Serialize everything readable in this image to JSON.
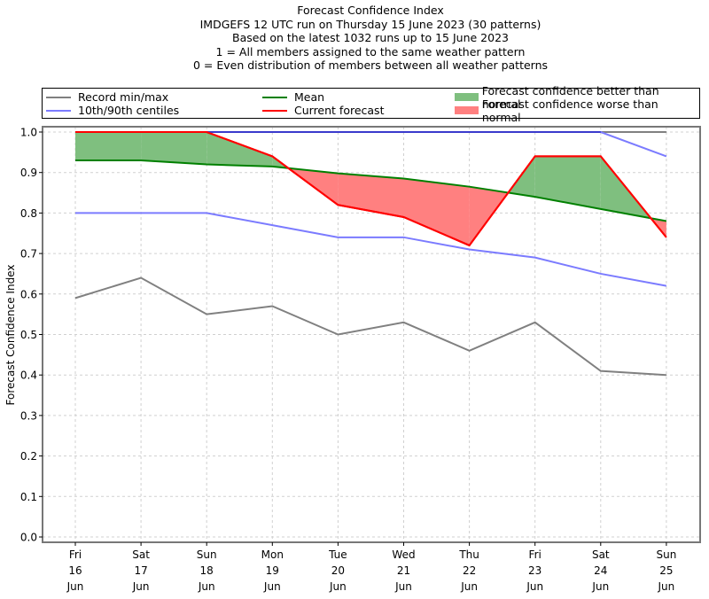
{
  "chart_data": {
    "type": "line",
    "title_lines": [
      "Forecast Confidence Index",
      "IMDGEFS 12 UTC run on Thursday 15 June 2023 (30 patterns)",
      "Based on the latest 1032 runs up to 15 June 2023",
      "1 = All members assigned to the same weather pattern",
      "0 = Even distribution of members between all weather patterns"
    ],
    "xlabel": "",
    "ylabel": "Forecast Confidence Index",
    "ylim": [
      0.0,
      1.0
    ],
    "yticks": [
      "0.0",
      "0.1",
      "0.2",
      "0.3",
      "0.4",
      "0.5",
      "0.6",
      "0.7",
      "0.8",
      "0.9",
      "1.0"
    ],
    "grid": true,
    "legend_position": "top (above plot)",
    "categories": [
      {
        "day": "Fri",
        "date": "16",
        "month": "Jun"
      },
      {
        "day": "Sat",
        "date": "17",
        "month": "Jun"
      },
      {
        "day": "Sun",
        "date": "18",
        "month": "Jun"
      },
      {
        "day": "Mon",
        "date": "19",
        "month": "Jun"
      },
      {
        "day": "Tue",
        "date": "20",
        "month": "Jun"
      },
      {
        "day": "Wed",
        "date": "21",
        "month": "Jun"
      },
      {
        "day": "Thu",
        "date": "22",
        "month": "Jun"
      },
      {
        "day": "Fri",
        "date": "23",
        "month": "Jun"
      },
      {
        "day": "Sat",
        "date": "24",
        "month": "Jun"
      },
      {
        "day": "Sun",
        "date": "25",
        "month": "Jun"
      }
    ],
    "series": [
      {
        "name": "Record min",
        "legend": "Record min/max",
        "color": "#808080",
        "values": [
          0.59,
          0.64,
          0.55,
          0.57,
          0.5,
          0.53,
          0.46,
          0.53,
          0.41,
          0.4
        ]
      },
      {
        "name": "Record max",
        "legend": "Record min/max",
        "color": "#808080",
        "values": [
          1.0,
          1.0,
          1.0,
          1.0,
          1.0,
          1.0,
          1.0,
          1.0,
          1.0,
          1.0
        ]
      },
      {
        "name": "10th centile",
        "legend": "10th/90th centiles",
        "color": "#7b7bff",
        "values": [
          0.8,
          0.8,
          0.8,
          0.77,
          0.74,
          0.74,
          0.71,
          0.69,
          0.65,
          0.62
        ]
      },
      {
        "name": "90th centile",
        "legend": "10th/90th centiles",
        "color": "#7b7bff",
        "values": [
          1.0,
          1.0,
          1.0,
          1.0,
          1.0,
          1.0,
          1.0,
          1.0,
          1.0,
          0.94
        ]
      },
      {
        "name": "Mean",
        "legend": "Mean",
        "color": "#008000",
        "values": [
          0.93,
          0.93,
          0.92,
          0.915,
          0.898,
          0.885,
          0.865,
          0.84,
          0.81,
          0.78
        ]
      },
      {
        "name": "Current forecast",
        "legend": "Current forecast",
        "color": "#ff0000",
        "values": [
          1.0,
          1.0,
          1.0,
          0.94,
          0.82,
          0.79,
          0.72,
          0.94,
          0.94,
          0.74
        ]
      }
    ],
    "fills": [
      {
        "name": "Forecast confidence better than normal",
        "color": "#7fbf7f",
        "condition": "current > mean"
      },
      {
        "name": "Forecast confidence worse than normal",
        "color": "#ff8080",
        "condition": "current < mean"
      }
    ]
  },
  "legend": {
    "record": "Record min/max",
    "centiles": "10th/90th centiles",
    "mean": "Mean",
    "current": "Current forecast",
    "better": "Forecast confidence better than normal",
    "worse": "Forecast confidence worse than normal"
  }
}
